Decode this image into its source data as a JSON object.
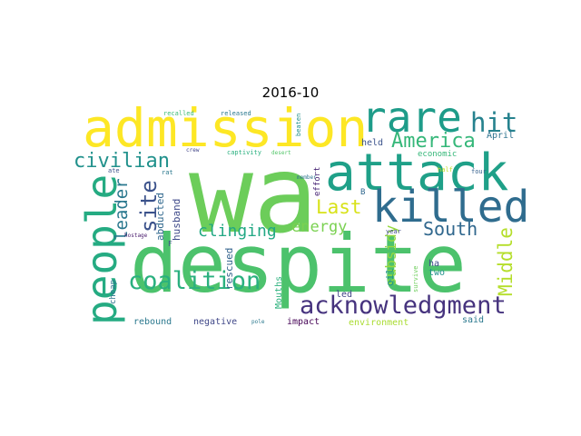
{
  "chart_data": {
    "type": "wordcloud",
    "title": "2016-10",
    "words": [
      {
        "text": "wa",
        "weight": 1.0,
        "color": "#6ccd5a"
      },
      {
        "text": "despite",
        "weight": 0.92,
        "color": "#4cc26c"
      },
      {
        "text": "admission",
        "weight": 0.62,
        "color": "#fde725"
      },
      {
        "text": "attack",
        "weight": 0.6,
        "color": "#1fa088"
      },
      {
        "text": "killed",
        "weight": 0.52,
        "color": "#2f6c8e"
      },
      {
        "text": "rare",
        "weight": 0.52,
        "color": "#1e9c89"
      },
      {
        "text": "people",
        "weight": 0.5,
        "color": "#25ab82"
      },
      {
        "text": "acknowledgment",
        "weight": 0.36,
        "color": "#46337e"
      },
      {
        "text": "coalition",
        "weight": 0.32,
        "color": "#2ab07f"
      },
      {
        "text": "hit",
        "weight": 0.32,
        "color": "#26828e"
      },
      {
        "text": "site",
        "weight": 0.26,
        "color": "#3b528b"
      },
      {
        "text": "America",
        "weight": 0.24,
        "color": "#35b779"
      },
      {
        "text": "civilian",
        "weight": 0.24,
        "color": "#21918c"
      },
      {
        "text": "South",
        "weight": 0.22,
        "color": "#31688e"
      },
      {
        "text": "Middle",
        "weight": 0.22,
        "color": "#b5de2b"
      },
      {
        "text": "Last",
        "weight": 0.22,
        "color": "#d8e219"
      },
      {
        "text": "leader",
        "weight": 0.2,
        "color": "#2a788e"
      },
      {
        "text": "clinging",
        "weight": 0.2,
        "color": "#22a884"
      },
      {
        "text": "energy",
        "weight": 0.18,
        "color": "#7ad151"
      },
      {
        "text": "subsidy",
        "weight": 0.16,
        "color": "#95d840"
      },
      {
        "text": "oil",
        "weight": 0.1,
        "color": "#21918c"
      },
      {
        "text": "abducted",
        "weight": 0.09,
        "color": "#31688e"
      },
      {
        "text": "husband",
        "weight": 0.09,
        "color": "#3e4989"
      },
      {
        "text": "rescued",
        "weight": 0.09,
        "color": "#33638d"
      },
      {
        "text": "Mouths",
        "weight": 0.09,
        "color": "#2db27d"
      },
      {
        "text": "held",
        "weight": 0.08,
        "color": "#3b528b"
      },
      {
        "text": "April",
        "weight": 0.08,
        "color": "#2c728e"
      },
      {
        "text": "economic",
        "weight": 0.08,
        "color": "#35b779"
      },
      {
        "text": "ha",
        "weight": 0.08,
        "color": "#3e4c8a"
      },
      {
        "text": "two",
        "weight": 0.08,
        "color": "#21918c"
      },
      {
        "text": "led",
        "weight": 0.08,
        "color": "#414487"
      },
      {
        "text": "said",
        "weight": 0.08,
        "color": "#2a788e"
      },
      {
        "text": "rebound",
        "weight": 0.08,
        "color": "#2a788e"
      },
      {
        "text": "negative",
        "weight": 0.08,
        "color": "#3f4788"
      },
      {
        "text": "impact",
        "weight": 0.08,
        "color": "#440154"
      },
      {
        "text": "environment",
        "weight": 0.08,
        "color": "#aadc32"
      },
      {
        "text": "cheap",
        "weight": 0.07,
        "color": "#2c728e"
      },
      {
        "text": "effort",
        "weight": 0.07,
        "color": "#482475"
      },
      {
        "text": "B",
        "weight": 0.07,
        "color": "#31688e"
      },
      {
        "text": "F",
        "weight": 0.06,
        "color": "#3e4989"
      },
      {
        "text": "recalled",
        "weight": 0.05,
        "color": "#3bbb75"
      },
      {
        "text": "released",
        "weight": 0.05,
        "color": "#2a788e"
      },
      {
        "text": "beaten",
        "weight": 0.05,
        "color": "#21918c"
      },
      {
        "text": "crew",
        "weight": 0.05,
        "color": "#414487"
      },
      {
        "text": "desert",
        "weight": 0.05,
        "color": "#52c569"
      },
      {
        "text": "captivity",
        "weight": 0.05,
        "color": "#2ab07f"
      },
      {
        "text": "ate",
        "weight": 0.05,
        "color": "#3b528b"
      },
      {
        "text": "rat",
        "weight": 0.05,
        "color": "#2a788e"
      },
      {
        "text": "member",
        "weight": 0.05,
        "color": "#2c728e"
      },
      {
        "text": "half",
        "weight": 0.05,
        "color": "#c2df23"
      },
      {
        "text": "four",
        "weight": 0.05,
        "color": "#35608d"
      },
      {
        "text": "year",
        "weight": 0.05,
        "color": "#3e4989"
      },
      {
        "text": "hostage",
        "weight": 0.05,
        "color": "#481a6c"
      },
      {
        "text": "survive",
        "weight": 0.05,
        "color": "#6ccd5a"
      },
      {
        "text": "pole",
        "weight": 0.05,
        "color": "#2a788e"
      }
    ]
  }
}
